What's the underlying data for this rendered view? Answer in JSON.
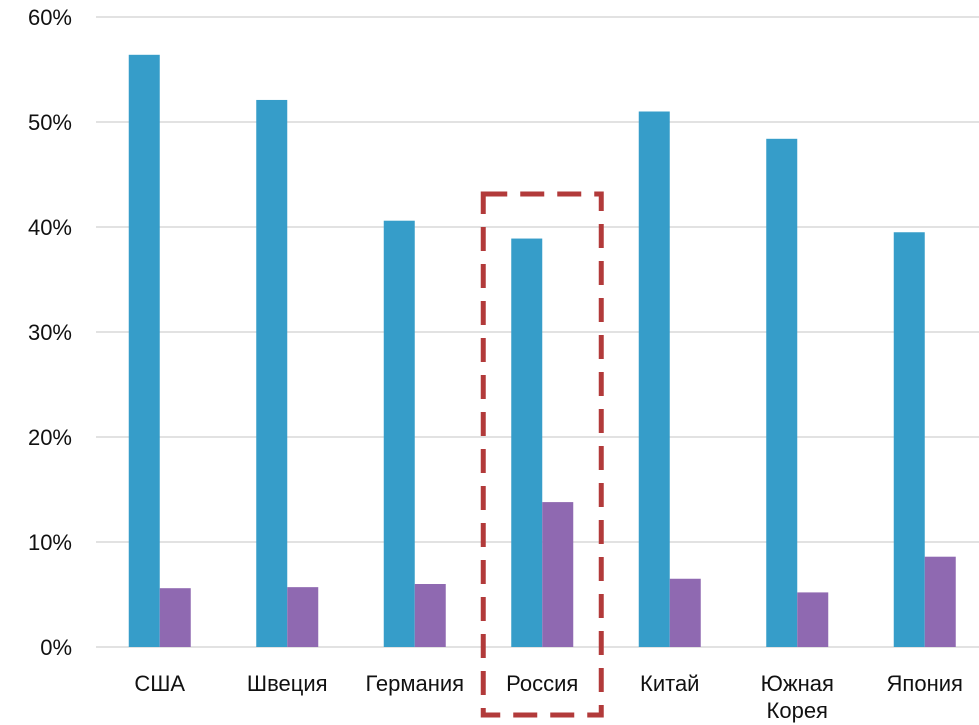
{
  "chart_data": {
    "type": "bar",
    "title": "",
    "xlabel": "",
    "ylabel": "",
    "ylim": [
      0,
      60
    ],
    "y_ticks": [
      "0%",
      "10%",
      "20%",
      "30%",
      "40%",
      "50%",
      "60%"
    ],
    "grid": true,
    "legend": "none",
    "categories": [
      [
        "США"
      ],
      [
        "Швеция"
      ],
      [
        "Германия"
      ],
      [
        "Россия"
      ],
      [
        "Китай"
      ],
      [
        "Южная",
        "Корея"
      ],
      [
        "Япония"
      ]
    ],
    "series": [
      {
        "color": "#369dc9",
        "values": [
          56.4,
          52.1,
          40.6,
          38.9,
          51.0,
          48.4,
          39.5
        ]
      },
      {
        "color": "#8f69b1",
        "values": [
          5.6,
          5.7,
          6.0,
          13.8,
          6.5,
          5.2,
          8.6
        ]
      }
    ],
    "highlight": {
      "category_index": 3,
      "style": "dashed-box",
      "color": "#b23a3a"
    }
  }
}
